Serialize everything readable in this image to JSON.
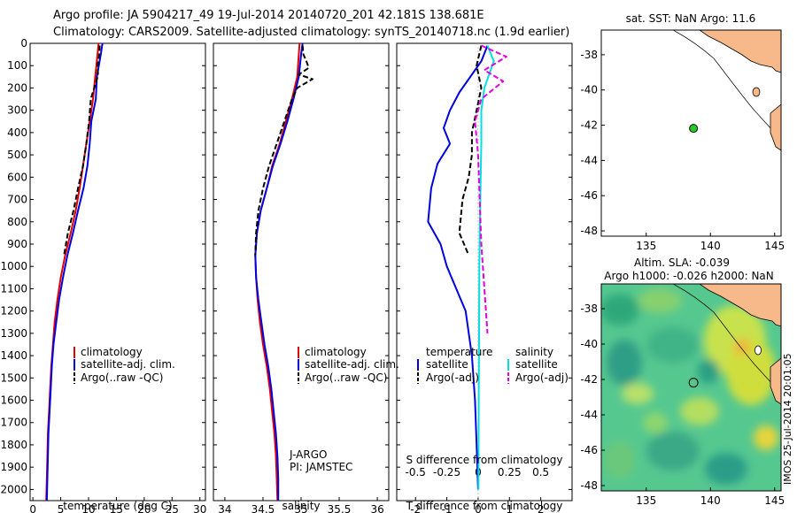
{
  "header": {
    "line1": "Argo profile: JA 5904217_49 19-Jul-2014 20140720_201 42.181S 138.681E",
    "line2": "Climatology: CARS2009. Satellite-adjusted climatology: synTS_20140718.nc (1.9d earlier)"
  },
  "colors": {
    "climatology": "#e00000",
    "satellite": "#0000e0",
    "argo": "#000000",
    "sal_satellite": "#00e0e0",
    "sal_argo": "#e000e0",
    "land": "#f7b98a",
    "station": "#22cc22"
  },
  "chart_data": [
    {
      "type": "line",
      "name": "temperature-profile",
      "xlabel": "temperature (deg C)",
      "ylabel": "",
      "xlim": [
        -0.5,
        31
      ],
      "ylim": [
        2050,
        0
      ],
      "xticks": [
        0,
        5,
        10,
        15,
        20,
        25,
        30
      ],
      "yticks": [
        0,
        100,
        200,
        300,
        400,
        500,
        600,
        700,
        800,
        900,
        1000,
        1100,
        1200,
        1300,
        1400,
        1500,
        1600,
        1700,
        1800,
        1900,
        2000
      ],
      "legend": {
        "position": "lower-middle",
        "entries": [
          "climatology",
          "satellite-adj. clim.",
          "Argo(..raw -QC)"
        ]
      },
      "series": [
        {
          "name": "climatology",
          "style": "solid",
          "color": "#e00000",
          "x": [
            11.8,
            11.6,
            11.2,
            10.8,
            10.2,
            9.6,
            9.0,
            8.4,
            7.7,
            6.8,
            5.8,
            5.0,
            4.4,
            3.9,
            3.6,
            3.3,
            3.1,
            2.9,
            2.7,
            2.6,
            2.5,
            2.4
          ],
          "y": [
            0,
            50,
            150,
            250,
            350,
            450,
            550,
            650,
            750,
            850,
            950,
            1050,
            1150,
            1250,
            1350,
            1450,
            1550,
            1650,
            1750,
            1850,
            1950,
            2050
          ]
        },
        {
          "name": "satellite-adj. clim.",
          "style": "solid",
          "color": "#0000e0",
          "x": [
            12.5,
            12.2,
            11.5,
            11.3,
            10.5,
            10.2,
            9.8,
            9.1,
            8.1,
            7.2,
            6.2,
            5.4,
            4.7,
            4.2,
            3.7,
            3.4,
            3.2,
            3.0,
            2.8,
            2.7,
            2.6,
            2.5
          ],
          "y": [
            0,
            50,
            150,
            250,
            350,
            450,
            550,
            650,
            750,
            850,
            950,
            1050,
            1150,
            1250,
            1350,
            1450,
            1550,
            1650,
            1750,
            1850,
            1950,
            2050
          ]
        },
        {
          "name": "Argo(..raw -QC)",
          "style": "dashed",
          "color": "#000000",
          "x": [
            12.0,
            11.9,
            11.6,
            11.7,
            11.4,
            10.4,
            10.1,
            9.6,
            9.0,
            8.1,
            7.3,
            6.3,
            5.6
          ],
          "y": [
            10,
            60,
            100,
            140,
            170,
            250,
            350,
            450,
            550,
            650,
            750,
            850,
            950
          ]
        }
      ]
    },
    {
      "type": "line",
      "name": "salinity-profile",
      "xlabel": "salinity",
      "ylabel": "",
      "xlim": [
        33.85,
        36.15
      ],
      "ylim": [
        2050,
        0
      ],
      "xticks": [
        34,
        34.5,
        35,
        35.5,
        36
      ],
      "xtick_labels": [
        "34",
        "34.5",
        "35",
        "35.5",
        "36"
      ],
      "legend": {
        "position": "lower-right",
        "entries": [
          "climatology",
          "satellite-adj. clim.",
          "Argo(..raw -QC)"
        ]
      },
      "annotation": [
        "J-ARGO",
        "PI: JAMSTEC"
      ],
      "series": [
        {
          "name": "climatology",
          "color": "#e00000",
          "x": [
            34.98,
            34.97,
            34.95,
            34.88,
            34.8,
            34.72,
            34.62,
            34.55,
            34.47,
            34.42,
            34.4,
            34.41,
            34.43,
            34.46,
            34.5,
            34.55,
            34.59,
            34.62,
            34.65,
            34.67,
            34.68,
            34.69
          ],
          "y": [
            0,
            50,
            150,
            250,
            350,
            450,
            550,
            650,
            750,
            850,
            950,
            1050,
            1150,
            1250,
            1350,
            1450,
            1550,
            1650,
            1750,
            1850,
            1950,
            2050
          ]
        },
        {
          "name": "satellite-adj. clim.",
          "color": "#0000e0",
          "x": [
            35.02,
            35.0,
            34.97,
            34.9,
            34.82,
            34.73,
            34.63,
            34.55,
            34.47,
            34.42,
            34.4,
            34.41,
            34.44,
            34.48,
            34.52,
            34.57,
            34.61,
            34.64,
            34.67,
            34.69,
            34.7,
            34.7
          ],
          "y": [
            0,
            50,
            150,
            250,
            350,
            450,
            550,
            650,
            750,
            850,
            950,
            1050,
            1150,
            1250,
            1350,
            1450,
            1550,
            1650,
            1750,
            1850,
            1950,
            2050
          ]
        },
        {
          "name": "Argo(..raw -QC)",
          "color": "#000000",
          "x": [
            35.02,
            35.03,
            35.07,
            35.1,
            34.97,
            35.15,
            34.95,
            34.88,
            34.78,
            34.68,
            34.58,
            34.5,
            34.44,
            34.41,
            34.4
          ],
          "y": [
            10,
            50,
            80,
            110,
            140,
            160,
            200,
            250,
            350,
            450,
            550,
            650,
            750,
            850,
            950
          ]
        }
      ]
    },
    {
      "type": "line",
      "name": "difference-profile",
      "xlabel": "T difference from climatology",
      "x2label": "S difference from climatology",
      "xlim": [
        -2.6,
        3.0
      ],
      "ylim": [
        2050,
        0
      ],
      "xticks": [
        -2,
        -1,
        0,
        1,
        2
      ],
      "x2ticks": [
        -0.5,
        -0.25,
        0,
        0.25,
        0.5
      ],
      "x2tick_labels": [
        "-0.5",
        "-0.25",
        "0",
        "0.25",
        "0.5"
      ],
      "legend": {
        "position": "lower-middle",
        "groups": [
          {
            "title": "temperature",
            "entries": [
              "satellite",
              "Argo(-adj)"
            ]
          },
          {
            "title": "salinity",
            "entries": [
              "satellite",
              "Argo(-adj)"
            ]
          }
        ]
      },
      "series": [
        {
          "name": "temperature satellite",
          "color": "#0000e0",
          "x": [
            0.3,
            0.1,
            -0.6,
            -0.9,
            -1.1,
            -0.9,
            -1.3,
            -1.5,
            -1.6,
            -1.2,
            -1.0,
            -0.4,
            -0.2,
            -0.1,
            -0.05,
            0
          ],
          "y": [
            10,
            80,
            220,
            300,
            380,
            450,
            540,
            650,
            800,
            900,
            1000,
            1200,
            1400,
            1600,
            1800,
            2000
          ]
        },
        {
          "name": "temperature Argo(-adj)",
          "color": "#000000",
          "x": [
            0.1,
            -0.05,
            0.1,
            -0.05,
            -0.2,
            -0.2,
            -0.3,
            -0.5,
            -0.6,
            -0.3
          ],
          "y": [
            10,
            100,
            200,
            300,
            400,
            500,
            600,
            700,
            850,
            950
          ]
        },
        {
          "name": "salinity satellite",
          "color": "#00e0e0",
          "x": [
            0.3,
            0.5,
            0.2,
            0.1,
            0.1,
            0.08,
            0.06,
            0.04,
            0.03,
            0.02,
            0.01
          ],
          "y": [
            10,
            80,
            200,
            300,
            450,
            600,
            800,
            1000,
            1300,
            1600,
            2000
          ]
        },
        {
          "name": "salinity Argo(-adj)",
          "color": "#e000e0",
          "x": [
            0.1,
            0.9,
            0.2,
            0.8,
            0.1,
            -0.1,
            0.0,
            0.05,
            0.1,
            0.2,
            0.3
          ],
          "y": [
            10,
            60,
            120,
            170,
            250,
            350,
            500,
            700,
            900,
            1100,
            1300
          ]
        }
      ]
    },
    {
      "type": "scatter",
      "name": "location-map",
      "title": "sat. SST: NaN Argo: 11.6",
      "xlim": [
        131.5,
        145.5
      ],
      "ylim": [
        -48.3,
        -36.6
      ],
      "xticks": [
        135,
        140,
        145
      ],
      "yticks": [
        -38,
        -40,
        -42,
        -44,
        -46,
        -48
      ],
      "points": [
        {
          "lon": 138.681,
          "lat": -42.181,
          "label": ""
        }
      ]
    },
    {
      "type": "heatmap",
      "name": "sla-map",
      "title_line1": "Altim. SLA: -0.039",
      "title_line2": "Argo h1000: -0.026 h2000: NaN",
      "xlim": [
        131.5,
        145.5
      ],
      "ylim": [
        -48.3,
        -36.6
      ],
      "xticks": [
        135,
        140,
        145
      ],
      "yticks": [
        -38,
        -40,
        -42,
        -44,
        -46,
        -48
      ],
      "points": [
        {
          "lon": 138.681,
          "lat": -42.181,
          "label": ""
        }
      ]
    }
  ],
  "watermark": "IMOS 25-Jul-2014 20:01:05"
}
